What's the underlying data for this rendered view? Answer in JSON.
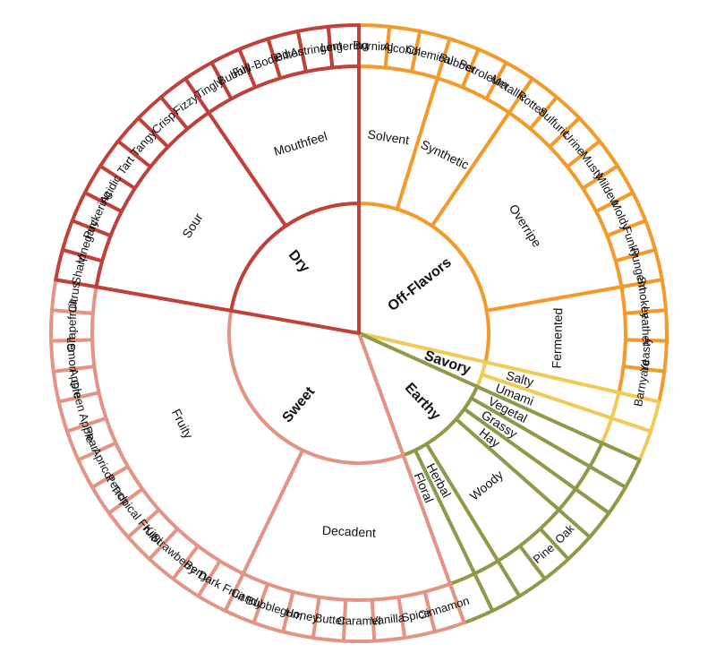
{
  "colors": {
    "off_flavors": "#f39a2b",
    "dry": "#c0403a",
    "sweet": "#e39484",
    "savory": "#f1cb5a",
    "earthy": "#8a9b4a"
  },
  "categories": [
    {
      "name": "Off-Flavors",
      "color_key": "off_flavors",
      "subcategories": [
        {
          "name": "Solvent",
          "leaves": [
            "Burning",
            "Alcohol",
            "Chemical"
          ]
        },
        {
          "name": "Synthetic",
          "leaves": [
            "Rubber",
            "Petroleum",
            "Metallic"
          ]
        },
        {
          "name": "Overripe",
          "leaves": [
            "Rotten",
            "Sulfuric",
            "Urine",
            "Musty",
            "Mildew",
            "Moldy",
            "Funky",
            "Pungent"
          ]
        },
        {
          "name": "Fermented",
          "leaves": [
            "Smokey",
            "Leather",
            "Yeasty",
            "Barnyard"
          ]
        }
      ]
    },
    {
      "name": "Savory",
      "color_key": "savory",
      "subcategories": [
        {
          "name": "Salty",
          "leaves": [
            ""
          ]
        },
        {
          "name": "Umami",
          "leaves": [
            ""
          ]
        }
      ]
    },
    {
      "name": "Earthy",
      "color_key": "earthy",
      "subcategories": [
        {
          "name": "Vegetal",
          "leaves": [
            ""
          ]
        },
        {
          "name": "Grassy",
          "leaves": [
            ""
          ]
        },
        {
          "name": "Hay",
          "leaves": [
            ""
          ]
        },
        {
          "name": "Woody",
          "leaves": [
            "Oak",
            "Pine",
            ""
          ]
        },
        {
          "name": "Herbal",
          "leaves": [
            ""
          ]
        },
        {
          "name": "Floral",
          "leaves": [
            ""
          ]
        }
      ]
    },
    {
      "name": "Sweet",
      "color_key": "sweet",
      "subcategories": [
        {
          "name": "Decadent",
          "leaves": [
            "Cinnamon",
            "Spice",
            "Vanilla",
            "Caramel",
            "Butter",
            "Honey",
            "Bubblegum",
            "Candy"
          ]
        },
        {
          "name": "Fruity",
          "leaves": [
            "Dark Fruit",
            "Berry",
            "Strawberry",
            "Kiwi",
            "Tropical Fruit",
            "Peach",
            "Apricot",
            "Pear",
            "Green Apple",
            "Apple",
            "Lemon",
            "Grapefruit",
            "Citrus"
          ]
        }
      ]
    },
    {
      "name": "Dry",
      "color_key": "dry",
      "subcategories": [
        {
          "name": "Sour",
          "leaves": [
            "Sharp",
            "Vinegary",
            "Puckering",
            "Acidic",
            "Tart",
            "Tangy",
            "Crisp",
            "Fizzy"
          ]
        },
        {
          "name": "Mouthfeel",
          "leaves": [
            "Tingly",
            "Bubbly",
            "Full-Bodied",
            "Bitter",
            "Astringent",
            "Lingering"
          ]
        }
      ]
    }
  ]
}
